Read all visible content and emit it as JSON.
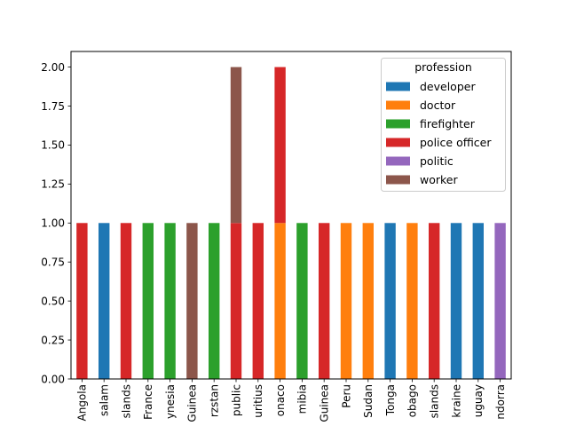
{
  "chart_data": {
    "type": "bar",
    "stacked": true,
    "categories": [
      "Angola",
      "salam",
      "slands",
      "France",
      "ynesia",
      "Guinea",
      "rzstan",
      "public",
      "uritius",
      "onaco",
      "mibia",
      "Guinea",
      "Peru",
      "Sudan",
      "Tonga",
      "obago",
      "slands",
      "kraine",
      "uguay",
      "ndorra"
    ],
    "series": [
      {
        "name": "developer",
        "color": "#1f77b4",
        "values": [
          0,
          1,
          0,
          0,
          0,
          0,
          0,
          0,
          0,
          0,
          0,
          0,
          0,
          0,
          1,
          0,
          0,
          1,
          1,
          0
        ]
      },
      {
        "name": "doctor",
        "color": "#ff7f0e",
        "values": [
          0,
          0,
          0,
          0,
          0,
          0,
          0,
          0,
          0,
          1,
          0,
          0,
          1,
          1,
          0,
          1,
          0,
          0,
          0,
          0
        ]
      },
      {
        "name": "firefighter",
        "color": "#2ca02c",
        "values": [
          0,
          0,
          0,
          1,
          1,
          0,
          1,
          0,
          0,
          0,
          1,
          0,
          0,
          0,
          0,
          0,
          0,
          0,
          0,
          0
        ]
      },
      {
        "name": "police officer",
        "color": "#d62728",
        "values": [
          1,
          0,
          1,
          0,
          0,
          0,
          0,
          1,
          1,
          1,
          0,
          1,
          0,
          0,
          0,
          0,
          1,
          0,
          0,
          0
        ]
      },
      {
        "name": "politic",
        "color": "#9467bd",
        "values": [
          0,
          0,
          0,
          0,
          0,
          0,
          0,
          0,
          0,
          0,
          0,
          0,
          0,
          0,
          0,
          0,
          0,
          0,
          0,
          1
        ]
      },
      {
        "name": "worker",
        "color": "#8c564b",
        "values": [
          0,
          0,
          0,
          0,
          0,
          1,
          0,
          1,
          0,
          0,
          0,
          0,
          0,
          0,
          0,
          0,
          0,
          0,
          0,
          0
        ]
      }
    ],
    "yticks": [
      "0.00",
      "0.25",
      "0.50",
      "0.75",
      "1.00",
      "1.25",
      "1.50",
      "1.75",
      "2.00"
    ],
    "ylim": [
      0,
      2.1
    ],
    "legend_title": "profession",
    "legend_position": "upper-right"
  }
}
